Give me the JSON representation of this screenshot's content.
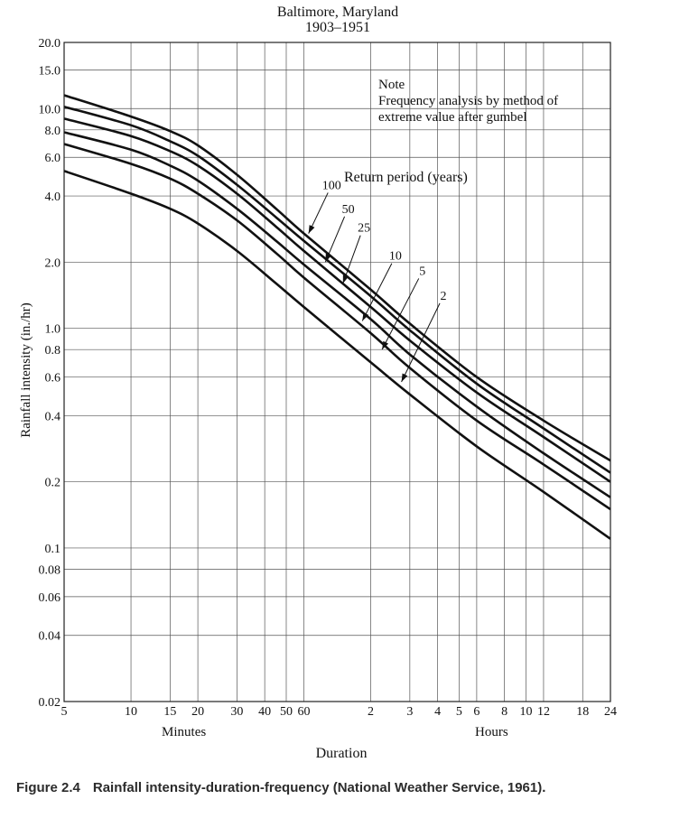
{
  "chart_data": {
    "type": "line",
    "title_line1": "Baltimore, Maryland",
    "title_line2": "1903–1951",
    "ylabel": "Rainfall intensity (in./hr)",
    "xlabel": "Duration",
    "x_scale": "log",
    "y_scale": "log",
    "x_unit": "minutes",
    "xlim": [
      5,
      1440
    ],
    "ylim": [
      0.02,
      20
    ],
    "grid": true,
    "y_ticks": [
      {
        "value": 20,
        "label": "20.0"
      },
      {
        "value": 15,
        "label": "15.0"
      },
      {
        "value": 10,
        "label": "10.0"
      },
      {
        "value": 8,
        "label": "8.0"
      },
      {
        "value": 6,
        "label": "6.0"
      },
      {
        "value": 4,
        "label": "4.0"
      },
      {
        "value": 2,
        "label": "2.0"
      },
      {
        "value": 1,
        "label": "1.0"
      },
      {
        "value": 0.8,
        "label": "0.8"
      },
      {
        "value": 0.6,
        "label": "0.6"
      },
      {
        "value": 0.4,
        "label": "0.4"
      },
      {
        "value": 0.2,
        "label": "0.2"
      },
      {
        "value": 0.1,
        "label": "0.1"
      },
      {
        "value": 0.08,
        "label": "0.08"
      },
      {
        "value": 0.06,
        "label": "0.06"
      },
      {
        "value": 0.04,
        "label": "0.04"
      },
      {
        "value": 0.02,
        "label": "0.02"
      }
    ],
    "x_ticks": [
      {
        "value": 5,
        "label": "5"
      },
      {
        "value": 10,
        "label": "10"
      },
      {
        "value": 15,
        "label": "15"
      },
      {
        "value": 20,
        "label": "20"
      },
      {
        "value": 30,
        "label": "30"
      },
      {
        "value": 40,
        "label": "40"
      },
      {
        "value": 50,
        "label": "50"
      },
      {
        "value": 60,
        "label": "60"
      },
      {
        "value": 120,
        "label": "2"
      },
      {
        "value": 180,
        "label": "3"
      },
      {
        "value": 240,
        "label": "4"
      },
      {
        "value": 300,
        "label": "5"
      },
      {
        "value": 360,
        "label": "6"
      },
      {
        "value": 480,
        "label": "8"
      },
      {
        "value": 600,
        "label": "10"
      },
      {
        "value": 720,
        "label": "12"
      },
      {
        "value": 1080,
        "label": "18"
      },
      {
        "value": 1440,
        "label": "24"
      }
    ],
    "x_group_labels": [
      {
        "label": "Minutes",
        "at": 17.3
      },
      {
        "label": "Hours",
        "at": 420
      }
    ],
    "note_lines": [
      "Note",
      "Frequency analysis by method of",
      "extreme value after gumbel"
    ],
    "legend_title": "Return period (years)",
    "series": [
      {
        "name": "100",
        "x": [
          5,
          10,
          15,
          20,
          30,
          45,
          60,
          120,
          180,
          360,
          720,
          1440
        ],
        "y": [
          11.5,
          9.2,
          7.9,
          6.8,
          5.0,
          3.5,
          2.7,
          1.5,
          1.05,
          0.6,
          0.38,
          0.25
        ]
      },
      {
        "name": "50",
        "x": [
          5,
          10,
          15,
          20,
          30,
          45,
          60,
          120,
          180,
          360,
          720,
          1440
        ],
        "y": [
          10.2,
          8.4,
          7.1,
          6.1,
          4.5,
          3.2,
          2.5,
          1.4,
          0.98,
          0.56,
          0.35,
          0.22
        ]
      },
      {
        "name": "25",
        "x": [
          5,
          10,
          15,
          20,
          30,
          45,
          60,
          120,
          180,
          360,
          720,
          1440
        ],
        "y": [
          9.0,
          7.5,
          6.4,
          5.5,
          4.1,
          2.9,
          2.25,
          1.25,
          0.88,
          0.51,
          0.32,
          0.2
        ]
      },
      {
        "name": "10",
        "x": [
          5,
          10,
          15,
          20,
          30,
          45,
          60,
          120,
          180,
          360,
          720,
          1440
        ],
        "y": [
          7.8,
          6.5,
          5.5,
          4.7,
          3.5,
          2.5,
          1.95,
          1.1,
          0.76,
          0.44,
          0.27,
          0.17
        ]
      },
      {
        "name": "5",
        "x": [
          5,
          10,
          15,
          20,
          30,
          45,
          60,
          120,
          180,
          360,
          720,
          1440
        ],
        "y": [
          6.9,
          5.6,
          4.8,
          4.1,
          3.1,
          2.2,
          1.7,
          0.95,
          0.66,
          0.38,
          0.24,
          0.15
        ]
      },
      {
        "name": "2",
        "x": [
          5,
          10,
          15,
          20,
          30,
          45,
          60,
          120,
          180,
          360,
          720,
          1440
        ],
        "y": [
          5.2,
          4.1,
          3.5,
          3.0,
          2.25,
          1.6,
          1.25,
          0.7,
          0.5,
          0.29,
          0.18,
          0.11
        ]
      }
    ],
    "series_labels": [
      {
        "name": "100",
        "label_x": 80,
        "label_y": 4.3,
        "arrow_to_x": 63,
        "arrow_to_y": 2.7
      },
      {
        "name": "50",
        "label_x": 95,
        "label_y": 3.35,
        "arrow_to_x": 75,
        "arrow_to_y": 2.0
      },
      {
        "name": "25",
        "label_x": 112,
        "label_y": 2.75,
        "arrow_to_x": 90,
        "arrow_to_y": 1.6
      },
      {
        "name": "10",
        "label_x": 155,
        "label_y": 2.05,
        "arrow_to_x": 110,
        "arrow_to_y": 1.08
      },
      {
        "name": "5",
        "label_x": 205,
        "label_y": 1.75,
        "arrow_to_x": 135,
        "arrow_to_y": 0.8
      },
      {
        "name": "2",
        "label_x": 255,
        "label_y": 1.35,
        "arrow_to_x": 165,
        "arrow_to_y": 0.57
      }
    ]
  },
  "caption": {
    "figure_number": "Figure 2.4",
    "text": "Rainfall intensity-duration-frequency (National Weather Service, 1961)."
  }
}
